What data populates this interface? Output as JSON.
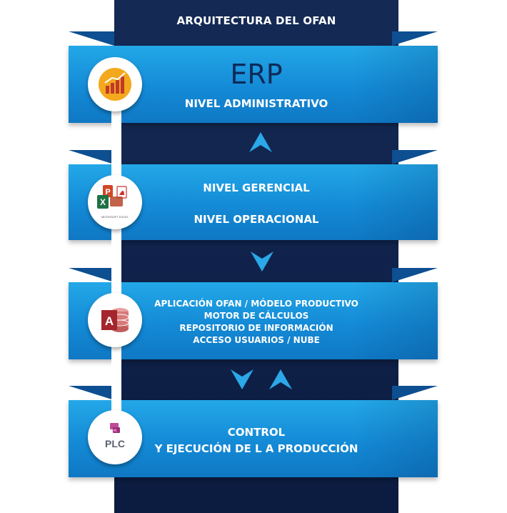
{
  "header": {
    "title": "ARQUITECTURA DEL OFAN"
  },
  "levels": [
    {
      "main": "ERP",
      "sub": "NIVEL ADMINISTRATIVO"
    },
    {
      "line1": "NIVEL GERENCIAL",
      "line2": "NIVEL OPERACIONAL",
      "icon_caption": "MICROSOFT EXCEL"
    },
    {
      "lines": [
        "APLICACIÓN OFAN / MÓDELO PRODUCTIVO",
        "MOTOR DE CÁLCULOS",
        "REPOSITORIO DE INFORMACIÓN",
        "ACCESO USUARIOS / NUBE"
      ],
      "icon_letter": "A"
    },
    {
      "line1": "CONTROL",
      "line2": "Y EJECUCIÓN DE L A PRODUCCIÓN",
      "icon_label": "PLC"
    }
  ],
  "colors": {
    "spine": "#142a55",
    "band": "#1a93dc",
    "arrow": "#2aa8e8",
    "erp_text": "#0d2a5a"
  },
  "icons": [
    "bar-chart-icon",
    "office-apps-icon",
    "access-database-icon",
    "plc-icon",
    "arrow-up-icon",
    "arrow-down-icon"
  ]
}
